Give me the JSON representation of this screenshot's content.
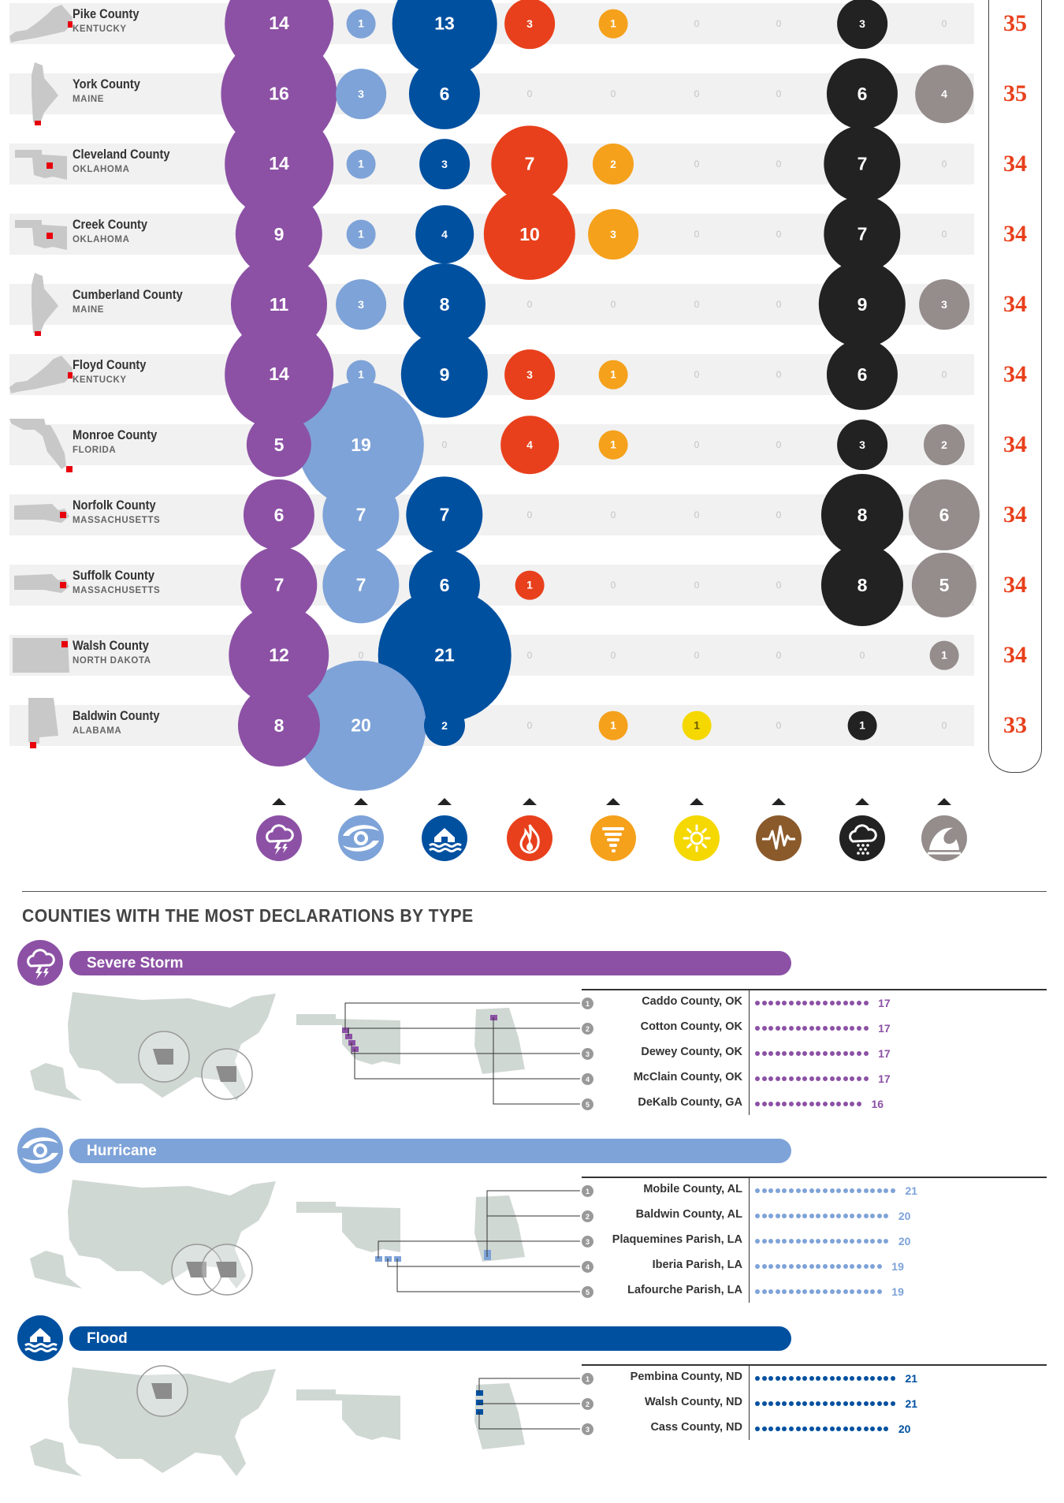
{
  "colors": {
    "severe_storm": "#8c51a5",
    "hurricane": "#7ea3d8",
    "flood": "#0050a0",
    "fire": "#e8401c",
    "tornado": "#f5a11c",
    "drought": "#f5d800",
    "earthquake": "#8b5a2b",
    "winter": "#222222",
    "coastal": "#958c8c",
    "total": "#e8401c"
  },
  "disaster_type_icons": [
    "severe-storm-icon",
    "hurricane-icon",
    "flood-icon",
    "fire-icon",
    "tornado-icon",
    "drought-icon",
    "earthquake-icon",
    "snow-icon",
    "tsunami-icon"
  ],
  "chart_data": [
    {
      "type": "scatter",
      "series_order": [
        "severe_storm",
        "hurricane",
        "flood",
        "fire",
        "tornado",
        "drought",
        "earthquake",
        "winter",
        "coastal"
      ],
      "rows": [
        {
          "county": "Pike County",
          "state": "KENTUCKY",
          "values": [
            14,
            1,
            13,
            3,
            1,
            0,
            0,
            3,
            0
          ],
          "total": "35"
        },
        {
          "county": "York County",
          "state": "MAINE",
          "values": [
            16,
            3,
            6,
            0,
            0,
            0,
            0,
            6,
            4
          ],
          "total": "35"
        },
        {
          "county": "Cleveland County",
          "state": "OKLAHOMA",
          "values": [
            14,
            1,
            3,
            7,
            2,
            0,
            0,
            7,
            0
          ],
          "total": "34"
        },
        {
          "county": "Creek County",
          "state": "OKLAHOMA",
          "values": [
            9,
            1,
            4,
            10,
            3,
            0,
            0,
            7,
            0
          ],
          "total": "34"
        },
        {
          "county": "Cumberland County",
          "state": "MAINE",
          "values": [
            11,
            3,
            8,
            0,
            0,
            0,
            0,
            9,
            3
          ],
          "total": "34"
        },
        {
          "county": "Floyd County",
          "state": "KENTUCKY",
          "values": [
            14,
            1,
            9,
            3,
            1,
            0,
            0,
            6,
            0
          ],
          "total": "34"
        },
        {
          "county": "Monroe County",
          "state": "FLORIDA",
          "values": [
            5,
            19,
            0,
            4,
            1,
            0,
            0,
            3,
            2
          ],
          "total": "34"
        },
        {
          "county": "Norfolk County",
          "state": "MASSACHUSETTS",
          "values": [
            6,
            7,
            7,
            0,
            0,
            0,
            0,
            8,
            6
          ],
          "total": "34"
        },
        {
          "county": "Suffolk County",
          "state": "MASSACHUSETTS",
          "values": [
            7,
            7,
            6,
            1,
            0,
            0,
            0,
            8,
            5
          ],
          "total": "34"
        },
        {
          "county": "Walsh County",
          "state": "NORTH DAKOTA",
          "values": [
            12,
            0,
            21,
            0,
            0,
            0,
            0,
            0,
            1
          ],
          "total": "34"
        },
        {
          "county": "Baldwin County",
          "state": "ALABAMA",
          "values": [
            8,
            20,
            2,
            0,
            1,
            1,
            0,
            1,
            0
          ],
          "total": "33"
        }
      ]
    },
    {
      "type": "bar",
      "title": "COUNTIES WITH THE MOST DECLARATIONS BY TYPE",
      "sections": [
        {
          "key": "severe_storm",
          "label": "Severe Storm",
          "icon": "severe-storm-icon",
          "ranks": [
            "1",
            "2",
            "3",
            "4",
            "5"
          ],
          "categories": [
            "Caddo County, OK",
            "Cotton County, OK",
            "Dewey County, OK",
            "McClain County, OK",
            "DeKalb County, GA"
          ],
          "values": [
            17,
            17,
            17,
            17,
            16
          ],
          "value_labels": [
            "17",
            "17",
            "17",
            "17",
            "16"
          ]
        },
        {
          "key": "hurricane",
          "label": "Hurricane",
          "icon": "hurricane-icon",
          "ranks": [
            "1",
            "2",
            "3",
            "4",
            "5"
          ],
          "categories": [
            "Mobile County, AL",
            "Baldwin County, AL",
            "Plaquemines Parish, LA",
            "Iberia Parish, LA",
            "Lafourche Parish, LA"
          ],
          "values": [
            21,
            20,
            20,
            19,
            19
          ],
          "value_labels": [
            "21",
            "20",
            "20",
            "19",
            "19"
          ]
        },
        {
          "key": "flood",
          "label": "Flood",
          "icon": "flood-icon",
          "ranks": [
            "1",
            "2",
            "3"
          ],
          "categories": [
            "Pembina County, ND",
            "Walsh County, ND",
            "Cass County, ND"
          ],
          "values": [
            21,
            21,
            20
          ],
          "value_labels": [
            "21",
            "21",
            "20"
          ]
        }
      ]
    }
  ]
}
